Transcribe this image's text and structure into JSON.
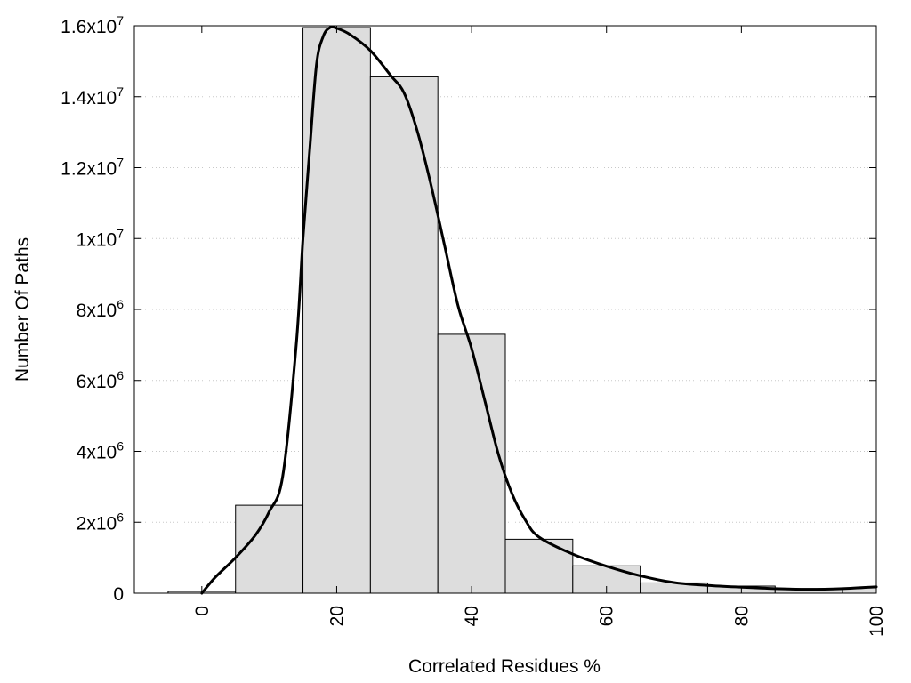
{
  "chart_data": {
    "type": "bar",
    "title": "",
    "xlabel": "Correlated Residues %",
    "ylabel": "Number Of Paths",
    "xlim": [
      -10,
      100
    ],
    "ylim": [
      0,
      16000000
    ],
    "grid": "horizontal-dotted",
    "bin_width": 10,
    "bars": [
      {
        "x": 0,
        "value": 50000
      },
      {
        "x": 10,
        "value": 2480000
      },
      {
        "x": 20,
        "value": 15950000
      },
      {
        "x": 30,
        "value": 14560000
      },
      {
        "x": 40,
        "value": 7300000
      },
      {
        "x": 50,
        "value": 1520000
      },
      {
        "x": 60,
        "value": 770000
      },
      {
        "x": 70,
        "value": 290000
      },
      {
        "x": 80,
        "value": 200000
      },
      {
        "x": 90,
        "value": 130000
      },
      {
        "x": 100,
        "value": 150000
      }
    ],
    "curve": {
      "x": [
        0,
        2,
        5,
        8,
        10,
        12,
        14,
        15,
        16,
        17,
        18,
        19,
        20,
        22,
        25,
        28,
        30,
        32,
        34,
        36,
        38,
        40,
        42,
        44,
        46,
        48,
        50,
        55,
        60,
        65,
        70,
        75,
        80,
        85,
        90,
        95,
        100
      ],
      "y": [
        0,
        450000,
        1000000,
        1650000,
        2300000,
        3300000,
        7000000,
        10000000,
        12500000,
        14900000,
        15700000,
        15950000,
        15930000,
        15750000,
        15300000,
        14600000,
        14100000,
        13000000,
        11500000,
        9800000,
        8100000,
        6900000,
        5400000,
        3900000,
        2800000,
        2050000,
        1580000,
        1100000,
        760000,
        490000,
        300000,
        220000,
        170000,
        130000,
        110000,
        130000,
        180000
      ]
    },
    "y_ticks": [
      {
        "value": 0,
        "base": "0",
        "exp": ""
      },
      {
        "value": 2000000,
        "base": "2x10",
        "exp": "6"
      },
      {
        "value": 4000000,
        "base": "4x10",
        "exp": "6"
      },
      {
        "value": 6000000,
        "base": "6x10",
        "exp": "6"
      },
      {
        "value": 8000000,
        "base": "8x10",
        "exp": "6"
      },
      {
        "value": 10000000,
        "base": "1x10",
        "exp": "7"
      },
      {
        "value": 12000000,
        "base": "1.2x10",
        "exp": "7"
      },
      {
        "value": 14000000,
        "base": "1.4x10",
        "exp": "7"
      },
      {
        "value": 16000000,
        "base": "1.6x10",
        "exp": "7"
      }
    ],
    "x_ticks": [
      "0",
      "20",
      "40",
      "60",
      "80",
      "100"
    ],
    "colors": {
      "bar_fill": "#dddddd",
      "bar_stroke": "#000000",
      "curve": "#000000",
      "grid": "#c8c8c8"
    }
  }
}
